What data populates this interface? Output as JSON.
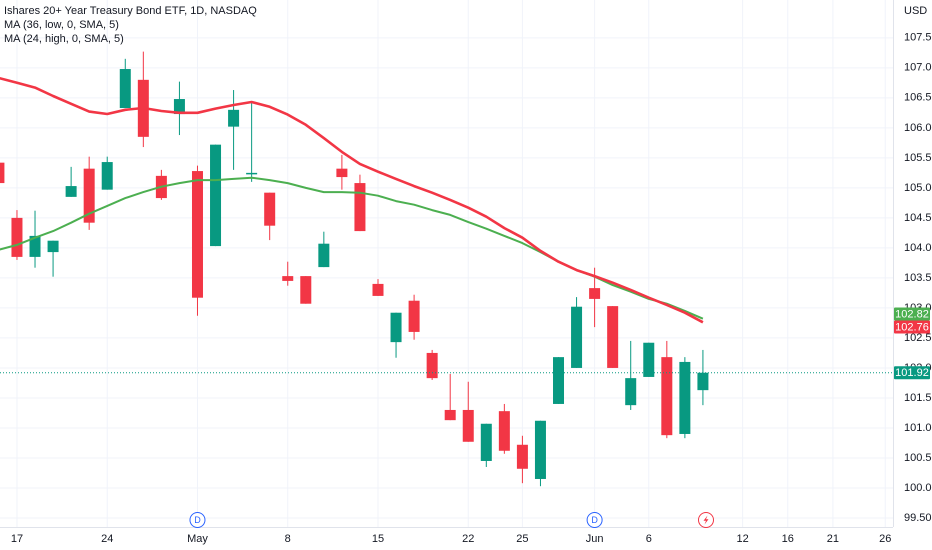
{
  "chart_data": {
    "type": "candlestick",
    "title": "Ishares 20+ Year Treasury Bond ETF, 1D, NASDAQ",
    "y_unit": "USD",
    "up_color": "#089981",
    "down_color": "#f23645",
    "open": [
      105.42,
      104.5,
      103.85,
      103.93,
      104.85,
      105.32,
      104.97,
      106.33,
      106.8,
      105.2,
      106.23,
      105.28,
      104.03,
      106.02,
      105.23,
      104.92,
      103.53,
      103.53,
      103.68,
      105.32,
      105.08,
      103.4,
      102.43,
      103.12,
      102.25,
      101.3,
      101.3,
      100.45,
      101.28,
      100.72,
      100.15,
      101.4,
      102.0,
      103.33,
      103.03,
      101.38,
      101.85,
      102.18,
      100.9,
      101.63
    ],
    "high": [
      105.5,
      104.63,
      104.62,
      104.12,
      105.35,
      105.52,
      105.52,
      107.15,
      107.27,
      105.3,
      106.77,
      105.37,
      105.72,
      106.63,
      106.43,
      104.92,
      103.77,
      103.53,
      104.27,
      105.55,
      105.22,
      103.48,
      102.92,
      103.22,
      102.3,
      101.9,
      101.77,
      101.07,
      101.4,
      100.87,
      101.12,
      102.18,
      103.18,
      103.67,
      103.03,
      102.45,
      102.42,
      102.45,
      102.18,
      102.3
    ],
    "low": [
      105.0,
      103.8,
      103.67,
      103.52,
      104.85,
      104.3,
      104.97,
      106.33,
      105.68,
      104.8,
      105.88,
      102.87,
      104.03,
      105.3,
      105.1,
      104.13,
      103.37,
      103.07,
      103.68,
      104.97,
      104.28,
      103.2,
      102.17,
      102.47,
      101.8,
      101.13,
      100.77,
      100.35,
      100.57,
      100.08,
      100.03,
      101.4,
      102.0,
      102.68,
      102.0,
      101.3,
      101.85,
      100.83,
      100.83,
      101.38
    ],
    "close": [
      105.08,
      103.85,
      104.2,
      104.12,
      105.03,
      104.42,
      105.43,
      106.98,
      105.85,
      104.83,
      106.48,
      103.17,
      105.72,
      106.3,
      105.25,
      104.37,
      103.45,
      103.07,
      104.07,
      105.18,
      104.28,
      103.2,
      102.92,
      102.6,
      101.83,
      101.13,
      100.77,
      101.07,
      100.62,
      100.32,
      101.12,
      102.18,
      103.02,
      103.15,
      102.0,
      101.83,
      102.42,
      100.88,
      102.1,
      101.92
    ],
    "series": [
      {
        "name": "MA (36, low, 0, SMA, 5)",
        "color": "#4caf50",
        "values": [
          103.97,
          104.05,
          104.17,
          104.28,
          104.42,
          104.57,
          104.7,
          104.83,
          104.93,
          105.02,
          105.08,
          105.13,
          105.13,
          105.15,
          105.17,
          105.13,
          105.08,
          105.0,
          104.93,
          104.93,
          104.92,
          104.87,
          104.78,
          104.72,
          104.63,
          104.55,
          104.43,
          104.32,
          104.2,
          104.08,
          103.93,
          103.77,
          103.63,
          103.52,
          103.38,
          103.27,
          103.15,
          103.07,
          102.95,
          102.82
        ]
      },
      {
        "name": "MA (24, high, 0, SMA, 5)",
        "color": "#f23645",
        "values": [
          106.83,
          106.75,
          106.67,
          106.53,
          106.4,
          106.27,
          106.23,
          106.3,
          106.33,
          106.28,
          106.25,
          106.25,
          106.32,
          106.38,
          106.43,
          106.35,
          106.22,
          106.05,
          105.83,
          105.6,
          105.4,
          105.27,
          105.15,
          105.03,
          104.92,
          104.8,
          104.67,
          104.52,
          104.33,
          104.17,
          103.95,
          103.77,
          103.63,
          103.53,
          103.42,
          103.3,
          103.17,
          103.05,
          102.92,
          102.76
        ]
      }
    ],
    "ylim": [
      99.35,
      108.13
    ],
    "yticks": [
      {
        "value": 99.5,
        "label": "99.50"
      },
      {
        "value": 100,
        "label": "100.00"
      },
      {
        "value": 100.5,
        "label": "100.50"
      },
      {
        "value": 101,
        "label": "101.00"
      },
      {
        "value": 101.5,
        "label": "101.50"
      },
      {
        "value": 102,
        "label": "102.00"
      },
      {
        "value": 102.5,
        "label": "102.50"
      },
      {
        "value": 103,
        "label": "103.00"
      },
      {
        "value": 103.5,
        "label": "103.50"
      },
      {
        "value": 104,
        "label": "104.00"
      },
      {
        "value": 104.5,
        "label": "104.50"
      },
      {
        "value": 105,
        "label": "105.00"
      },
      {
        "value": 105.5,
        "label": "105.50"
      },
      {
        "value": 106,
        "label": "106.00"
      },
      {
        "value": 106.5,
        "label": "106.50"
      },
      {
        "value": 107,
        "label": "107.00"
      },
      {
        "value": 107.5,
        "label": "107.50"
      }
    ],
    "xlim": [
      0.06,
      49.53
    ],
    "xticks": [
      {
        "value": 1,
        "label": "17"
      },
      {
        "value": 6,
        "label": "24"
      },
      {
        "value": 11,
        "label": "May"
      },
      {
        "value": 16,
        "label": "8"
      },
      {
        "value": 21,
        "label": "15"
      },
      {
        "value": 26,
        "label": "22"
      },
      {
        "value": 29,
        "label": "25"
      },
      {
        "value": 33,
        "label": "Jun"
      },
      {
        "value": 36,
        "label": "6"
      },
      {
        "value": 41.2,
        "label": "12"
      },
      {
        "value": 43.7,
        "label": "16"
      },
      {
        "value": 46.2,
        "label": "21"
      },
      {
        "value": 49.1,
        "label": "26"
      }
    ],
    "events": [
      {
        "label": "D",
        "at": 11
      },
      {
        "label": "D",
        "at": 33
      }
    ],
    "grid": true
  }
}
